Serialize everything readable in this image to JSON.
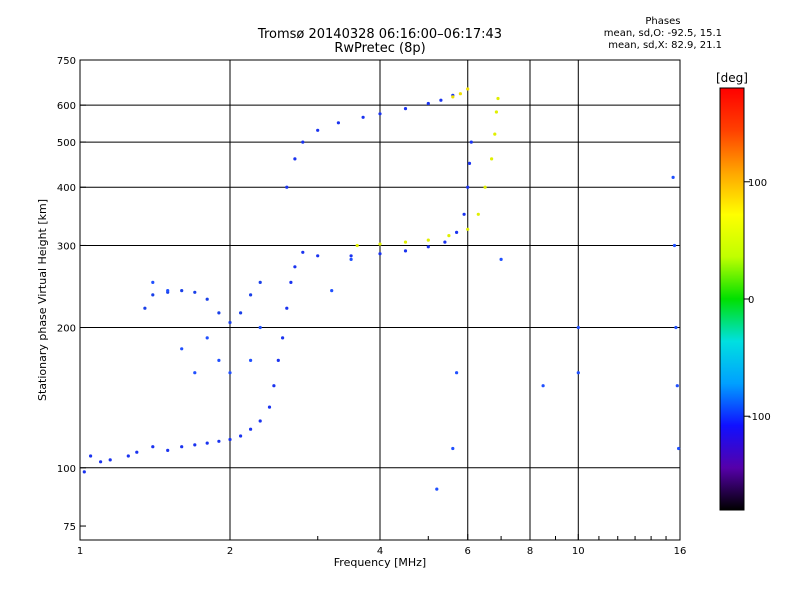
{
  "figure": {
    "title": "Tromsø 20140328 06:16:00–06:17:43",
    "subtitle": "RwPretec (8p)",
    "phase_stats": {
      "title": "Phases",
      "line_o": "mean, sd,O: -92.5, 15.1",
      "line_x": "mean, sd,X: 82.9, 21.1"
    }
  },
  "chart_data": {
    "type": "scatter",
    "title": "Tromsø 20140328 06:16:00–06:17:43",
    "subtitle": "RwPretec (8p)",
    "xlabel": "Frequency [MHz]",
    "ylabel": "Stationary phase Virtual Height [km]",
    "xscale": "log",
    "yscale": "log",
    "xlim": [
      1,
      16
    ],
    "ylim": [
      70,
      750
    ],
    "x_ticks": [
      1,
      2,
      4,
      6,
      8,
      10,
      16
    ],
    "x_minor_ticks": [
      3,
      5,
      7,
      9,
      11,
      12,
      13,
      14,
      15
    ],
    "y_ticks": [
      75,
      100,
      200,
      300,
      400,
      500,
      600,
      750
    ],
    "grid_x": [
      2,
      4,
      6,
      8,
      10
    ],
    "grid_y": [
      100,
      200,
      300,
      400,
      500,
      600
    ],
    "grid": true,
    "colorbar": {
      "label": "[deg]",
      "range": [
        -180,
        180
      ],
      "ticks": [
        -100,
        0,
        100
      ],
      "colormap": [
        "#000000",
        "#5500aa",
        "#1010ff",
        "#00a0ff",
        "#00e0e0",
        "#00e000",
        "#c0ff00",
        "#ffff00",
        "#ffa500",
        "#ff4000",
        "#ff0000"
      ]
    },
    "series": [
      {
        "trace": "o-mode",
        "phase_deg": -92.5,
        "color": "#1a33f0",
        "points": [
          [
            1.02,
            98
          ],
          [
            1.05,
            106
          ],
          [
            1.1,
            103
          ],
          [
            1.15,
            104
          ],
          [
            1.25,
            106
          ],
          [
            1.3,
            108
          ],
          [
            1.4,
            111
          ],
          [
            1.5,
            109
          ],
          [
            1.6,
            111
          ],
          [
            1.7,
            112
          ],
          [
            1.8,
            113
          ],
          [
            1.9,
            114
          ],
          [
            2.0,
            115
          ],
          [
            2.1,
            117
          ],
          [
            2.2,
            121
          ],
          [
            2.3,
            126
          ],
          [
            2.4,
            135
          ],
          [
            2.45,
            150
          ],
          [
            2.5,
            170
          ],
          [
            2.55,
            190
          ],
          [
            2.6,
            220
          ],
          [
            2.65,
            250
          ],
          [
            2.7,
            270
          ],
          [
            2.8,
            290
          ],
          [
            3.0,
            285
          ],
          [
            3.5,
            285
          ],
          [
            4.0,
            288
          ],
          [
            4.5,
            292
          ],
          [
            5.0,
            298
          ],
          [
            5.4,
            305
          ],
          [
            5.7,
            320
          ],
          [
            5.9,
            350
          ],
          [
            6.0,
            400
          ],
          [
            6.05,
            450
          ],
          [
            6.1,
            500
          ]
        ]
      },
      {
        "trace": "o-mode-lower-branch",
        "phase_deg": -92.5,
        "color": "#1a40e8",
        "points": [
          [
            1.35,
            220
          ],
          [
            1.4,
            235
          ],
          [
            1.5,
            238
          ],
          [
            1.6,
            240
          ],
          [
            1.7,
            238
          ],
          [
            1.8,
            230
          ],
          [
            1.9,
            215
          ],
          [
            2.0,
            205
          ],
          [
            2.1,
            215
          ],
          [
            2.2,
            235
          ],
          [
            2.3,
            250
          ]
        ]
      },
      {
        "trace": "o-mode-upper-branch",
        "phase_deg": -92.5,
        "color": "#1a33f0",
        "points": [
          [
            2.6,
            400
          ],
          [
            2.7,
            460
          ],
          [
            2.8,
            500
          ],
          [
            3.0,
            530
          ],
          [
            3.3,
            550
          ],
          [
            3.7,
            565
          ],
          [
            4.0,
            575
          ],
          [
            4.5,
            590
          ],
          [
            5.0,
            605
          ],
          [
            5.3,
            615
          ],
          [
            5.6,
            630
          ]
        ]
      },
      {
        "trace": "x-mode",
        "phase_deg": 82.9,
        "color": "#e0f000",
        "points": [
          [
            3.6,
            300
          ],
          [
            4.0,
            302
          ],
          [
            4.5,
            305
          ],
          [
            5.0,
            308
          ],
          [
            5.5,
            315
          ],
          [
            6.0,
            325
          ],
          [
            6.3,
            350
          ],
          [
            6.5,
            400
          ],
          [
            6.7,
            460
          ],
          [
            6.8,
            520
          ],
          [
            6.85,
            580
          ],
          [
            6.9,
            620
          ]
        ]
      },
      {
        "trace": "x-mode-cusp",
        "phase_deg": 82.9,
        "color": "#f0e000",
        "points": [
          [
            5.6,
            625
          ],
          [
            5.8,
            635
          ],
          [
            6.0,
            650
          ]
        ]
      },
      {
        "trace": "scattered",
        "phase_deg": -92.5,
        "color": "#2050ff",
        "points": [
          [
            1.4,
            250
          ],
          [
            1.5,
            240
          ],
          [
            1.6,
            180
          ],
          [
            1.7,
            160
          ],
          [
            1.8,
            190
          ],
          [
            1.9,
            170
          ],
          [
            2.0,
            160
          ],
          [
            2.2,
            170
          ],
          [
            2.3,
            200
          ],
          [
            3.2,
            240
          ],
          [
            3.5,
            280
          ],
          [
            5.2,
            90
          ],
          [
            5.6,
            110
          ],
          [
            5.7,
            160
          ],
          [
            7.0,
            280
          ],
          [
            8.5,
            150
          ],
          [
            10.0,
            200
          ],
          [
            10.0,
            160
          ],
          [
            15.5,
            420
          ],
          [
            15.6,
            300
          ],
          [
            15.7,
            200
          ],
          [
            15.8,
            150
          ],
          [
            15.9,
            110
          ]
        ]
      }
    ]
  }
}
